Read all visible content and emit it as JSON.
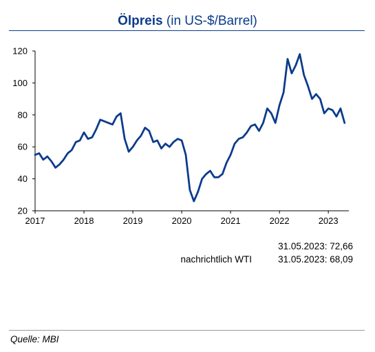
{
  "header": {
    "title_bold": "Ölpreis",
    "title_rest": "(in US-$/Barrel)"
  },
  "chart_data": {
    "type": "line",
    "title": "Ölpreis (in US-$/Barrel)",
    "xlabel": "",
    "ylabel": "",
    "xlim": [
      2017.0,
      2023.42
    ],
    "ylim": [
      20,
      120
    ],
    "yticks": [
      20,
      40,
      60,
      80,
      100,
      120
    ],
    "xtick_labels": [
      "2017",
      "2018",
      "2019",
      "2020",
      "2021",
      "2022",
      "2023"
    ],
    "grid": false,
    "color": "#0b3b8c",
    "series": [
      {
        "x": [
          "2017-01",
          "2017-02",
          "2017-03",
          "2017-04",
          "2017-05",
          "2017-06",
          "2017-07",
          "2017-08",
          "2017-09",
          "2017-10",
          "2017-11",
          "2017-12",
          "2018-01",
          "2018-02",
          "2018-03",
          "2018-04",
          "2018-05",
          "2018-06",
          "2018-07",
          "2018-08",
          "2018-09",
          "2018-10",
          "2018-11",
          "2018-12",
          "2019-01",
          "2019-02",
          "2019-03",
          "2019-04",
          "2019-05",
          "2019-06",
          "2019-07",
          "2019-08",
          "2019-09",
          "2019-10",
          "2019-11",
          "2019-12",
          "2020-01",
          "2020-02",
          "2020-03",
          "2020-04",
          "2020-05",
          "2020-06",
          "2020-07",
          "2020-08",
          "2020-09",
          "2020-10",
          "2020-11",
          "2020-12",
          "2021-01",
          "2021-02",
          "2021-03",
          "2021-04",
          "2021-05",
          "2021-06",
          "2021-07",
          "2021-08",
          "2021-09",
          "2021-10",
          "2021-11",
          "2021-12",
          "2022-01",
          "2022-02",
          "2022-03",
          "2022-04",
          "2022-05",
          "2022-06",
          "2022-07",
          "2022-08",
          "2022-09",
          "2022-10",
          "2022-11",
          "2022-12",
          "2023-01",
          "2023-02",
          "2023-03",
          "2023-04",
          "2023-05"
        ],
        "values": [
          55,
          56,
          52,
          54,
          51,
          47,
          49,
          52,
          56,
          58,
          63,
          64,
          69,
          65,
          66,
          71,
          77,
          76,
          75,
          74,
          79,
          81,
          65,
          57,
          60,
          64,
          67,
          72,
          70,
          63,
          64,
          59,
          62,
          60,
          63,
          65,
          64,
          55,
          33,
          26,
          32,
          40,
          43,
          45,
          41,
          41,
          43,
          50,
          55,
          62,
          65,
          66,
          69,
          73,
          74,
          70,
          75,
          84,
          81,
          75,
          86,
          94,
          115,
          106,
          111,
          118,
          105,
          98,
          90,
          93,
          90,
          81,
          84,
          83,
          79,
          84,
          75
        ]
      }
    ]
  },
  "notes": {
    "row1_value": "31.05.2023: 72,66",
    "row2_prefix": "nachrichtlich WTI",
    "row2_value": "31.05.2023: 68,09"
  },
  "footer": {
    "source": "Quelle: MBI"
  }
}
